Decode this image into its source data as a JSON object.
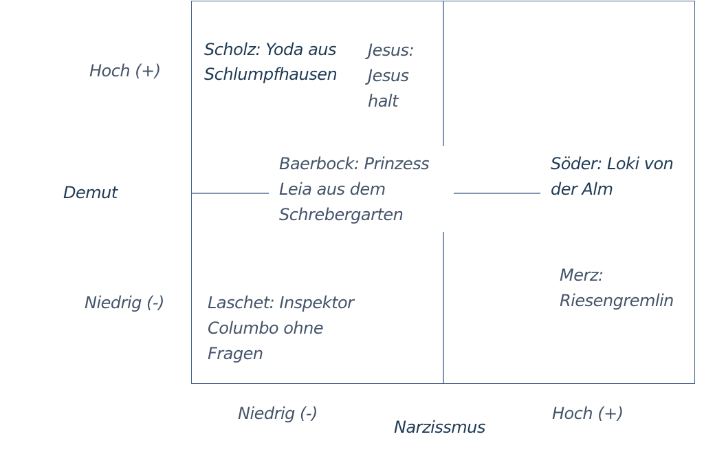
{
  "y_axis": {
    "label": "Demut",
    "high": "Hoch (+)",
    "low": "Niedrig (-)"
  },
  "x_axis": {
    "label": "Narzissmus",
    "low": "Niedrig (-)",
    "high": "Hoch (+)"
  },
  "entries": {
    "scholz": "Scholz: Yoda aus\nSchlumpfhausen",
    "jesus": "Jesus:\nJesus\nhalt",
    "baerbock": "Baerbock: Prinzess\nLeia aus dem\nSchrebergarten",
    "soeder": "Söder: Loki von\nder Alm",
    "merz": "Merz:\nRiesengremlin",
    "laschet": "Laschet: Inspektor\nColumbo ohne\nFragen"
  },
  "colors": {
    "frame": "#44628f",
    "text_dark": "#1f3a55",
    "text_light": "#44546a"
  }
}
